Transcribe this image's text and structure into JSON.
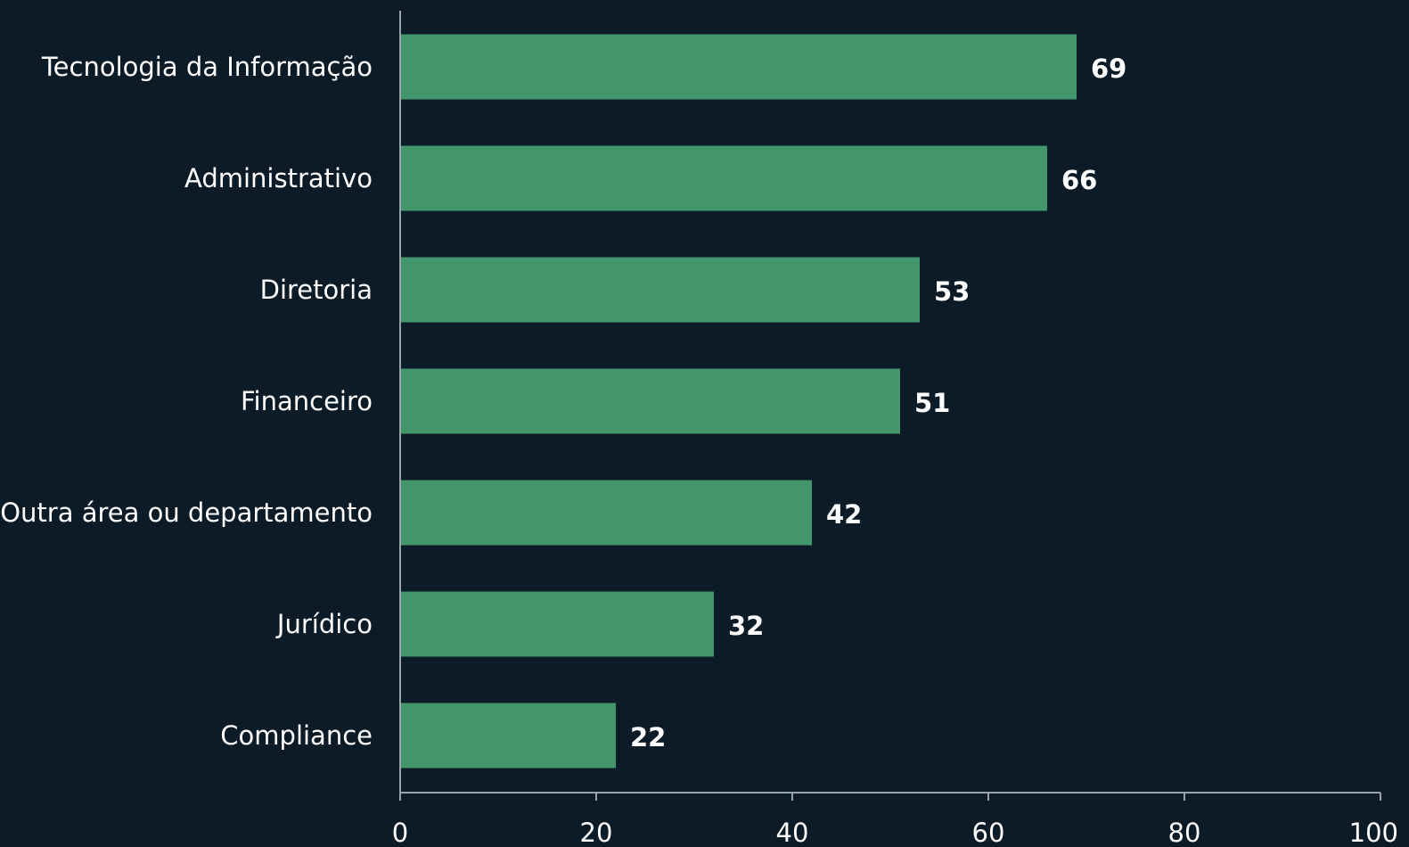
{
  "chart_data": {
    "type": "bar",
    "orientation": "horizontal",
    "title": "",
    "xlabel": "",
    "ylabel": "",
    "categories": [
      "Tecnologia da Informação",
      "Administrativo",
      "Diretoria",
      "Financeiro",
      "Outra área ou departamento",
      "Jurídico",
      "Compliance"
    ],
    "values": [
      69,
      66,
      53,
      51,
      42,
      32,
      22
    ],
    "xlim": [
      0,
      100
    ],
    "xticks": [
      "0",
      "20",
      "40",
      "60",
      "80",
      "100"
    ],
    "data_labels": true,
    "grid": false,
    "legend": "none",
    "colors": {
      "background": "#0c1b28",
      "bar": "#43956b",
      "axis": "#9aa3ab",
      "text": "#ffffff"
    }
  }
}
